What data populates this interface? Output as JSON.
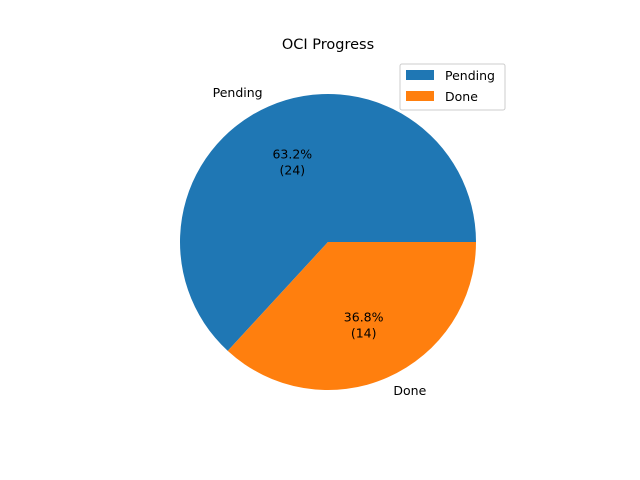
{
  "chart_data": {
    "type": "pie",
    "title": "OCI Progress",
    "slices": [
      {
        "label": "Pending",
        "value": 24,
        "percent_label": "63.2%",
        "count_label": "(24)",
        "color": "#1f77b4"
      },
      {
        "label": "Done",
        "value": 14,
        "percent_label": "36.8%",
        "count_label": "(14)",
        "color": "#ff7f0e"
      }
    ],
    "legend": {
      "placement": "upper-right",
      "entries": [
        "Pending",
        "Done"
      ]
    },
    "start_angle_deg": 0,
    "direction": "counterclockwise"
  }
}
